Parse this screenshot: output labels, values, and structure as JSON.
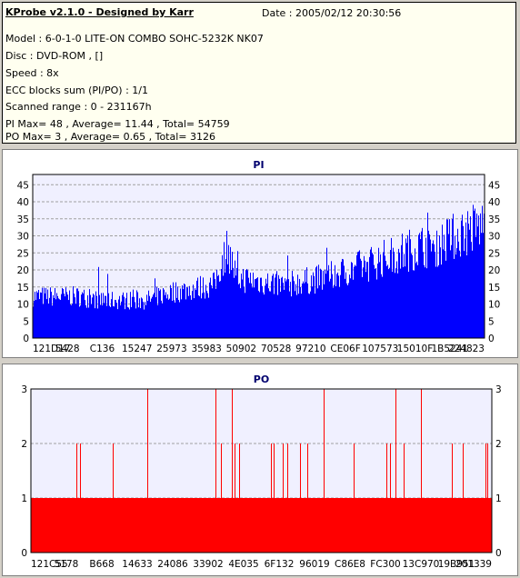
{
  "info": {
    "title": "KProbe v2.1.0 - Designed by Karr",
    "date": "Date : 2005/02/12 20:30:56",
    "lines": [
      "Model : 6-0-1-0 LITE-ON COMBO SOHC-5232K NK07",
      "Disc : DVD-ROM ,  []",
      "Speed : 8x",
      "ECC blocks sum (PI/PO) : 1/1",
      "Scanned range : 0 - 231167h",
      "PI Max= 48 , Average= 11.44 , Total= 54759",
      "PO Max= 3 , Average= 0.65 , Total= 3126"
    ]
  },
  "colors": {
    "pi": "#0000ff",
    "po": "#ff0000",
    "plot_bg": "#f0f0ff",
    "grid": "#a0a0a0"
  },
  "chart_data": [
    {
      "type": "bar",
      "title": "PI",
      "ylim": [
        0,
        48
      ],
      "yticks": [
        0,
        5,
        10,
        15,
        20,
        25,
        30,
        35,
        40,
        45
      ],
      "xtick_labels": [
        "121D17",
        "5428",
        "C136",
        "15247",
        "25973",
        "35983",
        "50902",
        "70528",
        "97210",
        "CE06F",
        "107573",
        "15010F",
        "1B5241",
        "224823"
      ],
      "grid": true,
      "series": [
        {
          "profile": [
            [
              0.0,
              11
            ],
            [
              0.05,
              11
            ],
            [
              0.1,
              11
            ],
            [
              0.15,
              10
            ],
            [
              0.2,
              10
            ],
            [
              0.25,
              10
            ],
            [
              0.3,
              12
            ],
            [
              0.35,
              13
            ],
            [
              0.4,
              14
            ],
            [
              0.42,
              21
            ],
            [
              0.43,
              24
            ],
            [
              0.45,
              16
            ],
            [
              0.5,
              15
            ],
            [
              0.55,
              14
            ],
            [
              0.6,
              15
            ],
            [
              0.65,
              16
            ],
            [
              0.7,
              18
            ],
            [
              0.75,
              20
            ],
            [
              0.8,
              22
            ],
            [
              0.85,
              24
            ],
            [
              0.9,
              25
            ],
            [
              0.95,
              28
            ],
            [
              1.0,
              30
            ]
          ]
        }
      ]
    },
    {
      "type": "bar",
      "title": "PO",
      "ylim": [
        0,
        3
      ],
      "yticks": [
        0,
        1,
        2,
        3
      ],
      "xtick_labels": [
        "121C55",
        "5178",
        "B668",
        "14633",
        "24086",
        "33902",
        "4E035",
        "6F132",
        "96019",
        "C86E8",
        "FC300",
        "13C970",
        "19B951",
        "201339"
      ],
      "grid": true,
      "series": [
        {
          "baseline": 1,
          "spikes": [
            [
              0.098,
              2
            ],
            [
              0.107,
              2
            ],
            [
              0.178,
              2
            ],
            [
              0.253,
              3
            ],
            [
              0.4,
              3
            ],
            [
              0.413,
              2
            ],
            [
              0.435,
              3
            ],
            [
              0.442,
              2
            ],
            [
              0.452,
              2
            ],
            [
              0.521,
              2
            ],
            [
              0.526,
              2
            ],
            [
              0.547,
              2
            ],
            [
              0.556,
              2
            ],
            [
              0.583,
              2
            ],
            [
              0.599,
              2
            ],
            [
              0.635,
              3
            ],
            [
              0.701,
              2
            ],
            [
              0.771,
              2
            ],
            [
              0.779,
              2
            ],
            [
              0.79,
              3
            ],
            [
              0.808,
              2
            ],
            [
              0.846,
              3
            ],
            [
              0.913,
              2
            ],
            [
              0.936,
              2
            ],
            [
              0.986,
              2
            ],
            [
              0.991,
              2
            ]
          ]
        }
      ]
    }
  ]
}
